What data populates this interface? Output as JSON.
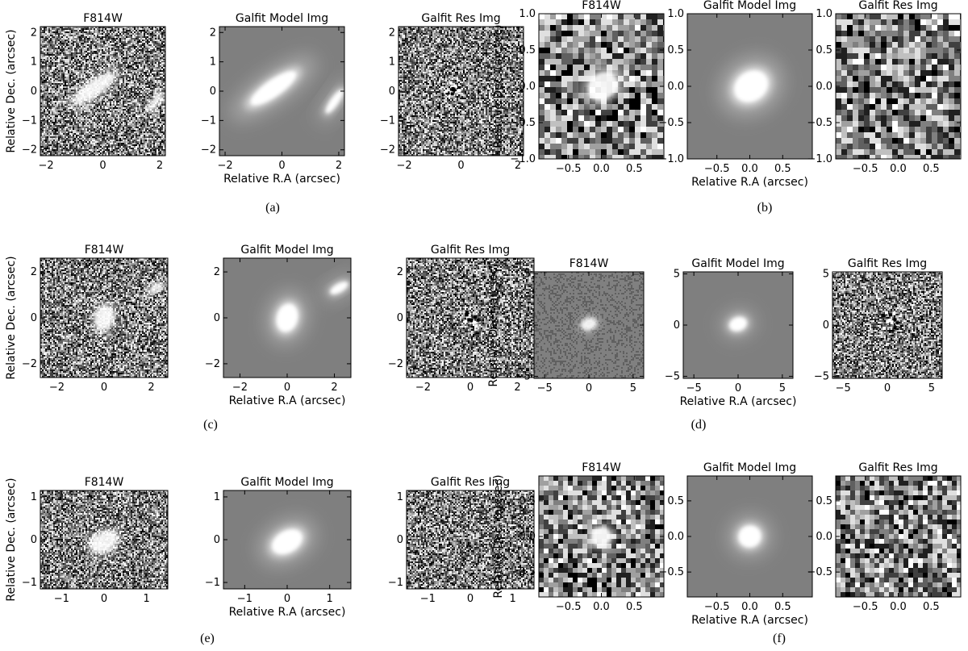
{
  "figure": {
    "panels": [
      {
        "caption": "(a)",
        "titles": [
          "F814W",
          "Galfit Model Img",
          "Galfit Res Img"
        ],
        "xlabel": "Relative R.A (arcsec)",
        "ylabel": "Relative Dec. (arcsec)",
        "xlim": [
          -2.2,
          2.2
        ],
        "ylim": [
          -2.2,
          2.2
        ],
        "xticks": [
          -2,
          0,
          2
        ],
        "xticklabels": [
          "−2",
          "0",
          "2"
        ],
        "yticks": [
          -2,
          -1,
          0,
          1,
          2
        ],
        "yticklabels": [
          "−2",
          "−1",
          "0",
          "1",
          "2"
        ],
        "noise_cell": 0.045,
        "sources": [
          {
            "x": -0.3,
            "y": 0.1,
            "a": 0.95,
            "b": 0.28,
            "angle": -35
          },
          {
            "x": 1.85,
            "y": -0.35,
            "a": 0.5,
            "b": 0.13,
            "angle": -55
          }
        ],
        "residual": [
          {
            "x": -0.3,
            "y": 0.1,
            "r": 0.25
          }
        ]
      },
      {
        "caption": "(b)",
        "titles": [
          "F814W",
          "Galfit Model Img",
          "Galfit Res Img"
        ],
        "xlabel": "Relative R.A (arcsec)",
        "ylabel": "Relative Dec. (arcsec)",
        "xlim": [
          -0.95,
          0.95
        ],
        "ylim": [
          -1.0,
          1.0
        ],
        "xticks": [
          -0.5,
          0,
          0.5
        ],
        "xticklabels": [
          "−0.5",
          "0.0",
          "0.5"
        ],
        "yticks": [
          -1,
          -0.5,
          0,
          0.5,
          1
        ],
        "yticklabels": [
          "−1.0",
          "−0.5",
          "0.0",
          "0.5",
          "1.0"
        ],
        "noise_cell": 0.07,
        "sources": [
          {
            "x": 0.02,
            "y": 0.0,
            "a": 0.27,
            "b": 0.2,
            "angle": -35
          }
        ],
        "residual": []
      },
      {
        "caption": "(c)",
        "titles": [
          "F814W",
          "Galfit Model Img",
          "Galfit Res Img"
        ],
        "xlabel": "Relative R.A (arcsec)",
        "ylabel": "Relative Dec. (arcsec)",
        "xlim": [
          -2.7,
          2.7
        ],
        "ylim": [
          -2.6,
          2.6
        ],
        "xticks": [
          -2,
          0,
          2
        ],
        "xticklabels": [
          "−2",
          "0",
          "2"
        ],
        "yticks": [
          -2,
          0,
          2
        ],
        "yticklabels": [
          "−2",
          "0",
          "2"
        ],
        "noise_cell": 0.055,
        "sources": [
          {
            "x": 0.0,
            "y": 0.0,
            "a": 0.6,
            "b": 0.45,
            "angle": -75
          },
          {
            "x": 2.2,
            "y": 1.3,
            "a": 0.42,
            "b": 0.18,
            "angle": -30
          }
        ],
        "residual": [
          {
            "x": 0.0,
            "y": -0.1,
            "r": 0.4
          }
        ]
      },
      {
        "caption": "(d)",
        "titles": [
          "F814W",
          "Galfit Model Img",
          "Galfit Res Img"
        ],
        "xlabel": "Relative R.A (arcsec)",
        "ylabel": "Relative Dec. (arcsec)",
        "xlim": [
          -6.2,
          6.2
        ],
        "ylim": [
          -5.2,
          5.2
        ],
        "xticks": [
          -5,
          0,
          5
        ],
        "xticklabels": [
          "−5",
          "0",
          "5"
        ],
        "yticks": [
          -5,
          0,
          5
        ],
        "yticklabels": [
          "−5",
          "0",
          "5"
        ],
        "noise_cell": 0.1,
        "smooth": true,
        "sources": [
          {
            "x": 0.0,
            "y": 0.1,
            "a": 1.0,
            "b": 0.65,
            "angle": -20
          }
        ],
        "residual": [
          {
            "x": 0.2,
            "y": 0.3,
            "r": 1.2
          }
        ]
      },
      {
        "caption": "(e)",
        "titles": [
          "F814W",
          "Galfit Model Img",
          "Galfit Res Img"
        ],
        "xlabel": "Relative R.A (arcsec)",
        "ylabel": "Relative Dec. (arcsec)",
        "xlim": [
          -1.5,
          1.5
        ],
        "ylim": [
          -1.15,
          1.15
        ],
        "xticks": [
          -1,
          0,
          1
        ],
        "xticklabels": [
          "−1",
          "0",
          "1"
        ],
        "yticks": [
          -1,
          0,
          1
        ],
        "yticklabels": [
          "−1",
          "0",
          "1"
        ],
        "noise_cell": 0.035,
        "sources": [
          {
            "x": 0.0,
            "y": -0.05,
            "a": 0.38,
            "b": 0.25,
            "angle": -30
          }
        ],
        "residual": []
      },
      {
        "caption": "(f)",
        "titles": [
          "F814W",
          "Galfit Model Img",
          "Galfit Res Img"
        ],
        "xlabel": "Relative R.A (arcsec)",
        "ylabel": "Relative Dec. (arcsec)",
        "xlim": [
          -0.95,
          0.95
        ],
        "ylim": [
          -0.85,
          0.85
        ],
        "xticks": [
          -0.5,
          0,
          0.5
        ],
        "xticklabels": [
          "−0.5",
          "0.0",
          "0.5"
        ],
        "yticks": [
          -0.5,
          0,
          0.5
        ],
        "yticklabels": [
          "−0.5",
          "0.0",
          "0.5"
        ],
        "noise_cell": 0.065,
        "sources": [
          {
            "x": 0.0,
            "y": 0.0,
            "a": 0.17,
            "b": 0.15,
            "angle": -20
          }
        ],
        "residual": []
      }
    ]
  }
}
